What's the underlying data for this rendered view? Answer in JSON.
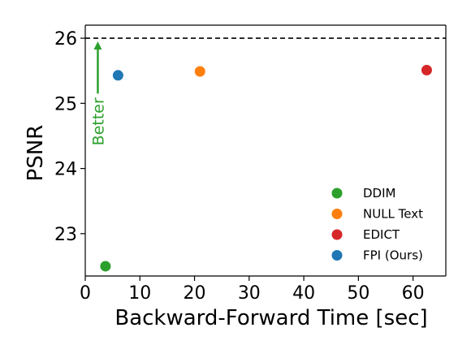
{
  "chart_data": {
    "type": "scatter",
    "title": "",
    "xlabel": "Backward-Forward Time [sec]",
    "ylabel": "PSNR",
    "xlim": [
      0,
      66
    ],
    "ylim": [
      22.35,
      26.2
    ],
    "xticks": [
      0,
      10,
      20,
      30,
      40,
      50,
      60
    ],
    "yticks": [
      23,
      24,
      25,
      26
    ],
    "xtick_labels": [
      "0",
      "10",
      "20",
      "30",
      "40",
      "50",
      "60"
    ],
    "ytick_labels": [
      "23",
      "24",
      "25",
      "26"
    ],
    "grid": false,
    "legend_position": "bottom-right",
    "reference_line": {
      "y": 26,
      "style": "dashed",
      "color": "#000000"
    },
    "annotation": {
      "text": "Better",
      "color": "#2ca02c",
      "x": 2.3,
      "y_from": 25.15,
      "y_to": 26.0
    },
    "series": [
      {
        "name": "DDIM",
        "color": "#2ca02c",
        "x": 3.7,
        "y": 22.5
      },
      {
        "name": "NULL Text",
        "color": "#ff7f0e",
        "x": 21.0,
        "y": 25.49
      },
      {
        "name": "EDICT",
        "color": "#d62728",
        "x": 62.5,
        "y": 25.51
      },
      {
        "name": "FPI (Ours)",
        "color": "#1f77b4",
        "x": 6.0,
        "y": 25.43
      }
    ]
  }
}
